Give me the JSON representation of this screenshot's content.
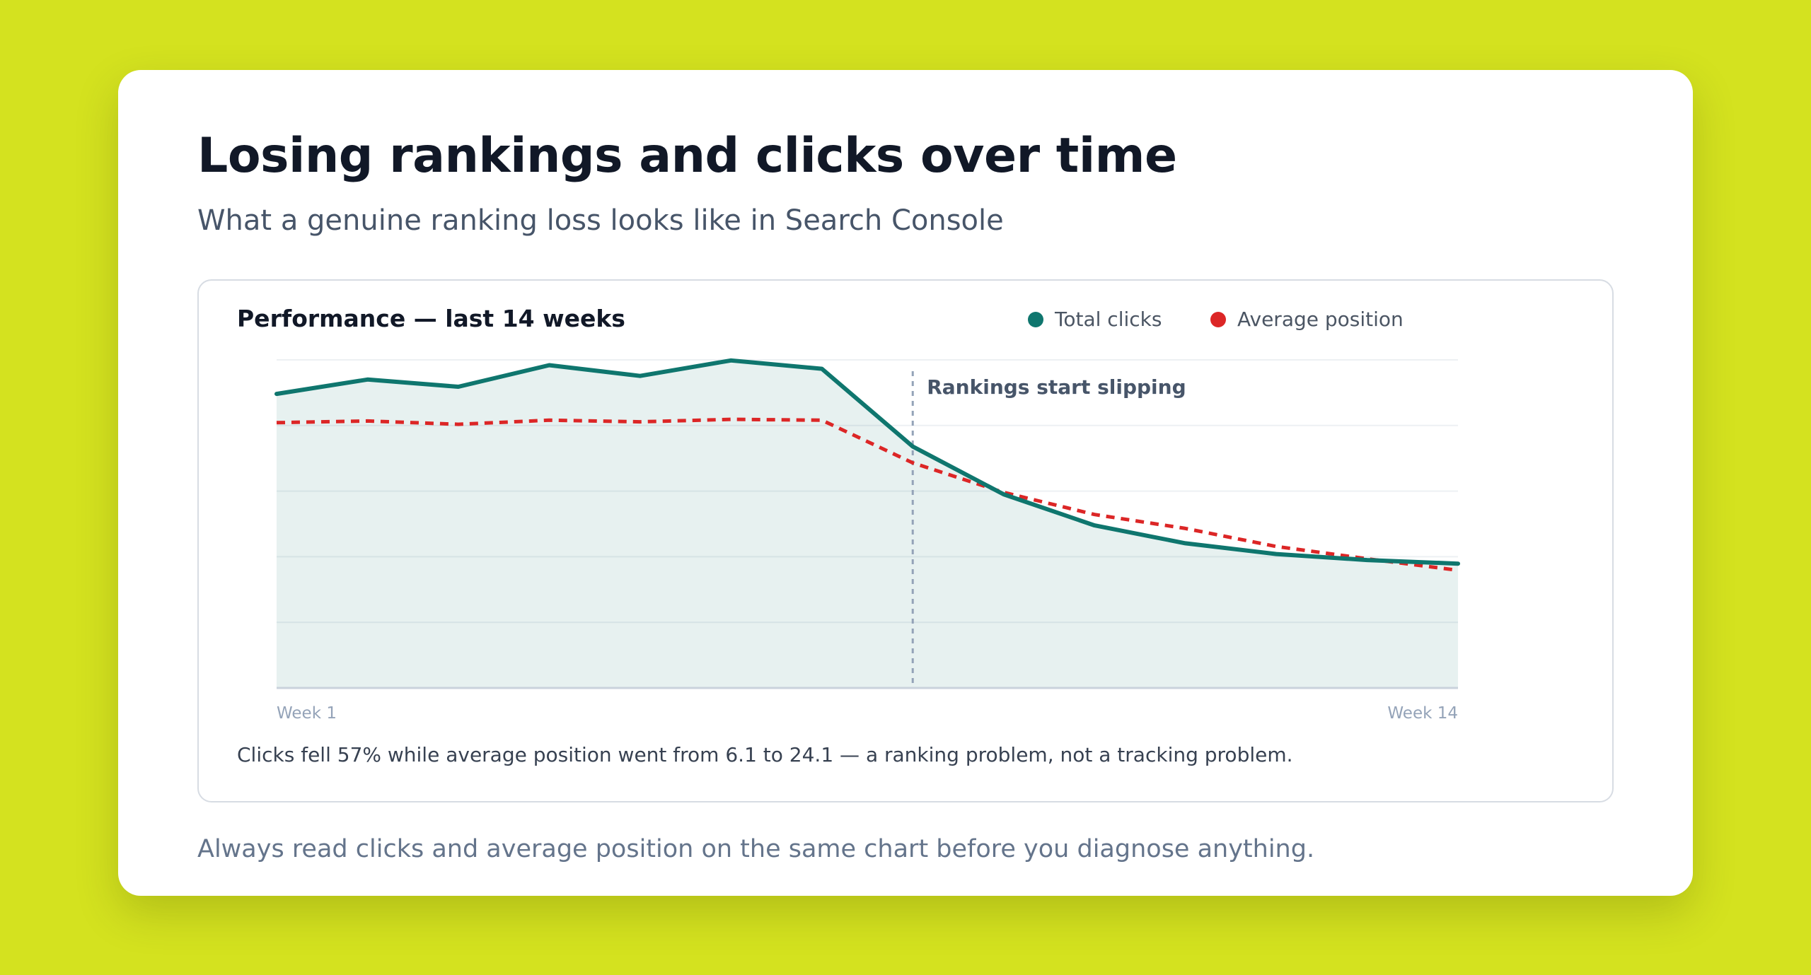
{
  "page": {
    "title": "Losing rankings and clicks over time",
    "subtitle": "What a genuine ranking loss looks like in Search Console",
    "bottom_note": "Always read clicks and average position on the same chart before you diagnose anything."
  },
  "chart_panel": {
    "title": "Performance — last 14 weeks",
    "footnote": "Clicks fell 57% while average position went from 6.1 to 24.1 — a ranking problem, not a tracking problem.",
    "annotation": "Rankings start slipping"
  },
  "chart_data": {
    "type": "line",
    "title": "Performance — last 14 weeks",
    "x": [
      1,
      2,
      3,
      4,
      5,
      6,
      7,
      8,
      9,
      10,
      11,
      12,
      13,
      14
    ],
    "x_tick_labels": [
      "Week 1",
      "Week 14"
    ],
    "y_axis_labels_shown": false,
    "grid": true,
    "legend_position": "top-right",
    "series": [
      {
        "name": "Total clicks",
        "color": "#0f766e",
        "style": "solid",
        "area_fill": true,
        "values": [
          1230,
          1290,
          1260,
          1350,
          1305,
          1370,
          1335,
          1010,
          810,
          680,
          605,
          560,
          535,
          520
        ]
      },
      {
        "name": "Average position",
        "color": "#dc2626",
        "style": "dashed",
        "inverted_axis": true,
        "values": [
          6.1,
          5.9,
          6.3,
          5.8,
          6.0,
          5.7,
          5.8,
          11.0,
          14.6,
          17.3,
          19.0,
          21.2,
          22.7,
          24.1
        ]
      }
    ],
    "annotations": [
      {
        "x": 8,
        "label": "Rankings start slipping",
        "style": "dashed-vertical-line"
      }
    ]
  }
}
